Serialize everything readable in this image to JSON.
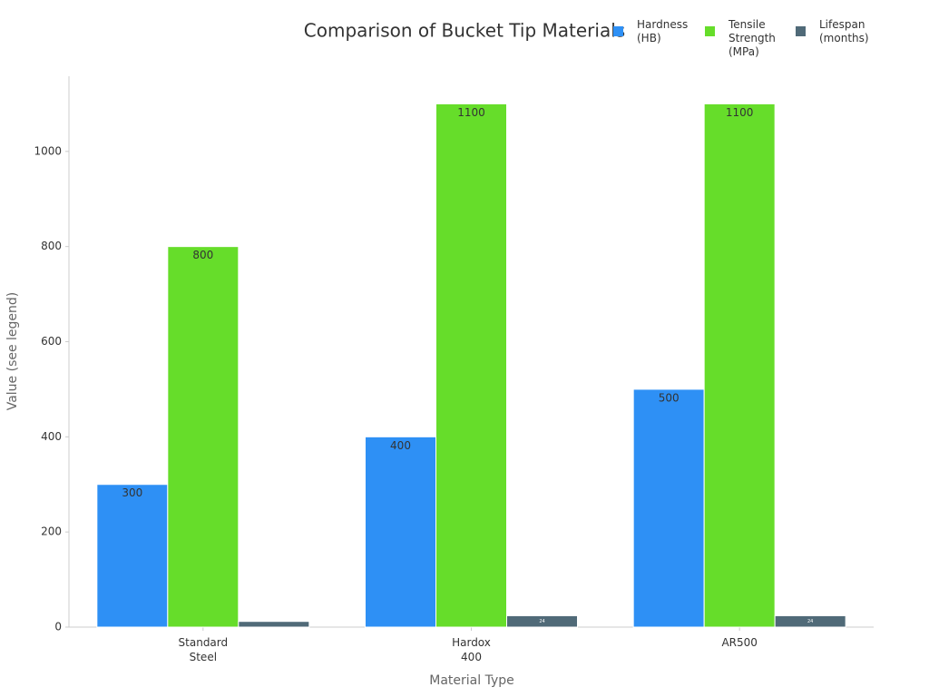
{
  "chart_data": {
    "type": "bar",
    "title": "Comparison of Bucket Tip Materials",
    "x_label": "Material Type",
    "y_label": "Value (see legend)",
    "categories": [
      "Standard Steel",
      "Hardox 400",
      "AR500"
    ],
    "series": [
      {
        "name": "Hardness (HB)",
        "color": "#2e90f5",
        "values": [
          300,
          400,
          500
        ]
      },
      {
        "name": "Tensile Strength (MPa)",
        "color": "#66dd2a",
        "values": [
          800,
          1100,
          1100
        ]
      },
      {
        "name": "Lifespan (months)",
        "color": "#506a78",
        "values": [
          12,
          24,
          24
        ]
      }
    ],
    "ylim": [
      0,
      1158
    ],
    "yticks": [
      0,
      200,
      400,
      600,
      800,
      1000
    ],
    "grid": false,
    "legend": "top-right"
  }
}
